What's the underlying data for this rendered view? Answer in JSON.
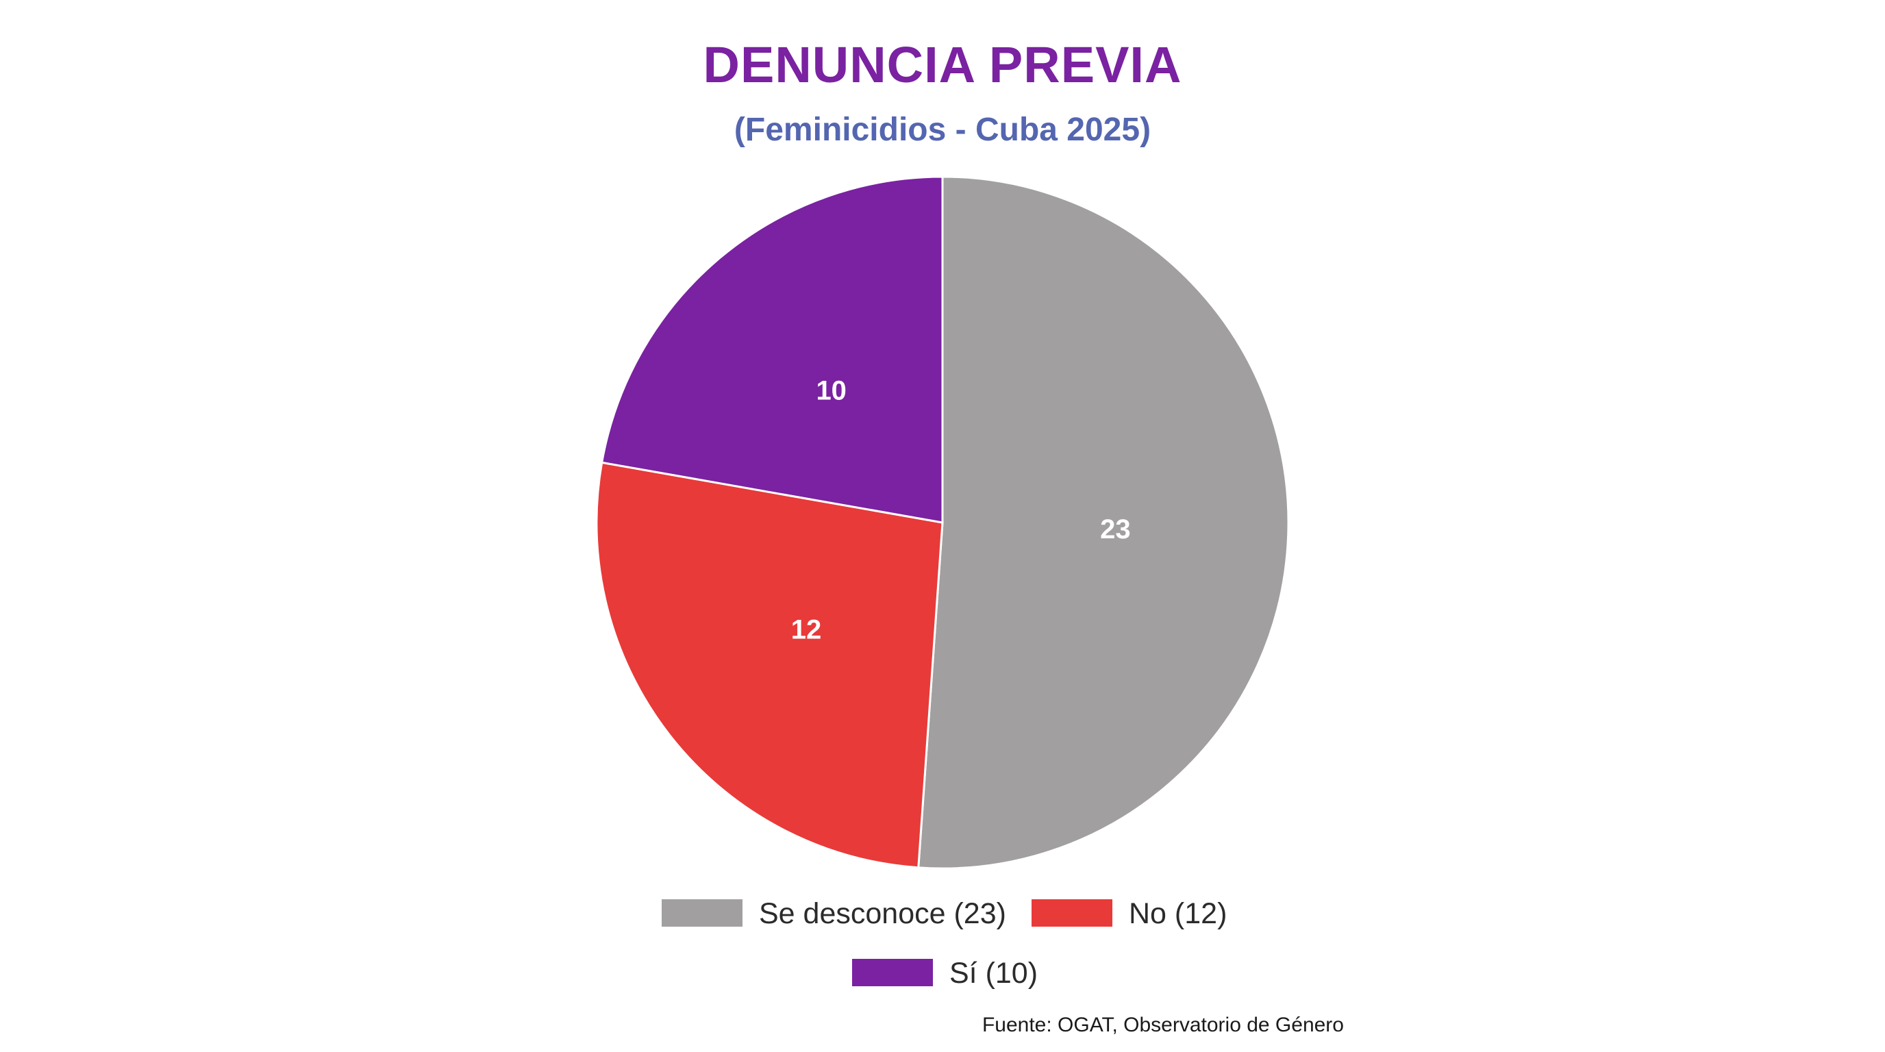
{
  "chart_data": {
    "type": "pie",
    "title": "DENUNCIA PREVIA",
    "subtitle": "(Feminicidios - Cuba 2025)",
    "slices": [
      {
        "name": "Se desconoce",
        "value": 23,
        "label": "23",
        "legend": "Se desconoce (23)",
        "color": "#a19fa0"
      },
      {
        "name": "No",
        "value": 12,
        "label": "12",
        "legend": "No (12)",
        "color": "#e83a39"
      },
      {
        "name": "Sí",
        "value": 10,
        "label": "10",
        "legend": "Sí (10)",
        "color": "#7a22a1"
      }
    ],
    "start_angle": "12 o'clock",
    "direction": "clockwise",
    "legend_placement": "bottom",
    "source": "Fuente: OGAT, Observatorio de Género"
  },
  "colors": {
    "title": "#7a22a1",
    "subtitle": "#5466b0",
    "slice_border": "#ffffff"
  }
}
